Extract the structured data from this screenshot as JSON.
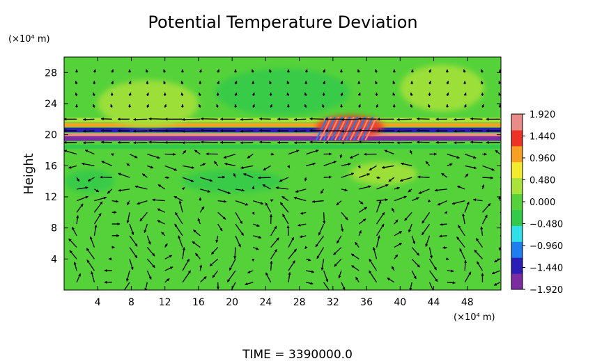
{
  "chart_data": {
    "type": "heatmap",
    "title": "Potential Temperature Deviation",
    "ylabel": "Height",
    "y_unit": "(×10⁴ m)",
    "x_unit": "(×10⁴ m)",
    "xlim": [
      0,
      52
    ],
    "ylim": [
      0,
      30
    ],
    "x_ticks": [
      4,
      8,
      12,
      16,
      20,
      24,
      28,
      32,
      36,
      40,
      44,
      48
    ],
    "x_tick_labels": [
      "4",
      "8",
      "12",
      "16",
      "20",
      "24",
      "28",
      "32",
      "36",
      "40",
      "44",
      "48"
    ],
    "y_ticks": [
      4,
      8,
      12,
      16,
      20,
      24,
      28
    ],
    "y_tick_labels": [
      "4",
      "8",
      "12",
      "16",
      "20",
      "24",
      "28"
    ],
    "colorbar": {
      "range": [
        -1.92,
        1.92
      ],
      "tick_values": [
        1.92,
        1.44,
        0.96,
        0.48,
        0.0,
        -0.48,
        -0.96,
        -1.44,
        -1.92
      ],
      "tick_labels": [
        "1.920",
        "1.440",
        "0.960",
        "0.480",
        "0.000",
        "−0.480",
        "−0.960",
        "−1.440",
        "−1.920"
      ],
      "colors": [
        "#7b2ca0",
        "#2a1db8",
        "#1e7ef0",
        "#2fe0e8",
        "#33c94a",
        "#55d23a",
        "#a8e23a",
        "#f3ec2e",
        "#f8a024",
        "#ee3226",
        "#e98b86"
      ]
    },
    "field_bands": [
      {
        "y_from": 0,
        "y_to": 10,
        "value": 0.05
      },
      {
        "y_from": 10,
        "y_to": 18,
        "value": 0.0
      },
      {
        "y_from": 18.2,
        "y_to": 18.7,
        "value": -0.5
      },
      {
        "y_from": 19.2,
        "y_to": 19.8,
        "value": -1.9
      },
      {
        "y_from": 19.8,
        "y_to": 20.2,
        "value": 1.6
      },
      {
        "y_from": 20.3,
        "y_to": 20.9,
        "value": -1.5
      },
      {
        "y_from": 21.0,
        "y_to": 21.5,
        "value": 1.0
      },
      {
        "y_from": 21.6,
        "y_to": 22.2,
        "value": 0.5
      },
      {
        "y_from": 22.2,
        "y_to": 30,
        "value": 0.1
      }
    ],
    "anomalies": [
      {
        "x": 26,
        "y": 25.5,
        "rx": 8,
        "ry": 3,
        "value": -0.4
      },
      {
        "x": 34,
        "y": 21,
        "rx": 4,
        "ry": 1.5,
        "value": 1.3
      },
      {
        "x": 45,
        "y": 26,
        "rx": 5,
        "ry": 3,
        "value": 0.4
      },
      {
        "x": 10,
        "y": 24,
        "rx": 6,
        "ry": 3,
        "value": 0.25
      },
      {
        "x": 38,
        "y": 15,
        "rx": 4,
        "ry": 1.5,
        "value": 0.35
      },
      {
        "x": 20,
        "y": 14,
        "rx": 6,
        "ry": 1.5,
        "value": -0.2
      },
      {
        "x": 3,
        "y": 14,
        "rx": 3,
        "ry": 1.5,
        "value": -0.25
      }
    ],
    "time_label": "TIME = 3390000.0"
  }
}
